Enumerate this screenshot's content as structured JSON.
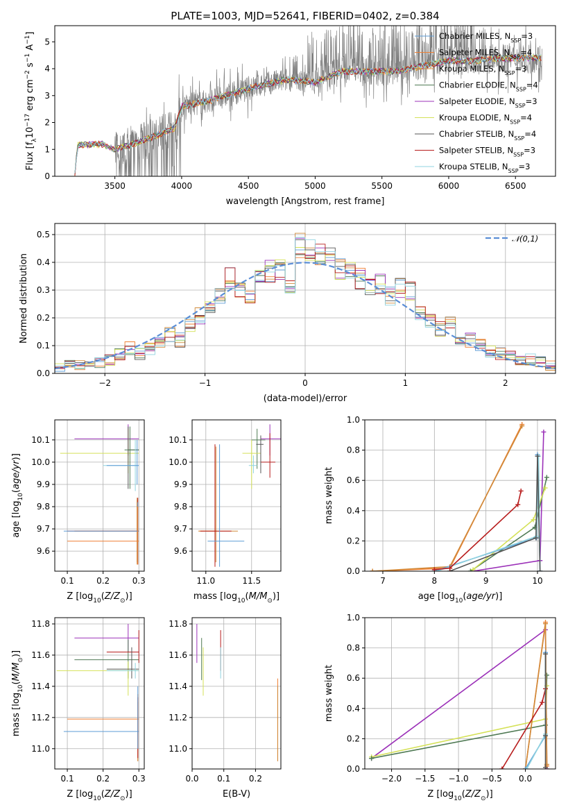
{
  "title": "PLATE=1003, MJD=52641, FIBERID=0402, z=0.384",
  "colors": [
    "#5b9bd5",
    "#ef7f32",
    "#d08a3a",
    "#4f7a54",
    "#9b30b8",
    "#d4e157",
    "#555555",
    "#b71c1c",
    "#8fd3e0"
  ],
  "series": [
    {
      "name": "Chabrier MILES, N",
      "sub": "SSP",
      "suf": "=3"
    },
    {
      "name": "Salpeter MILES, N",
      "sub": "SSP",
      "suf": "=4"
    },
    {
      "name": "Kroupa MILES, N",
      "sub": "SSP",
      "suf": "=3"
    },
    {
      "name": "Chabrier ELODIE, N",
      "sub": "SSP",
      "suf": "=4"
    },
    {
      "name": "Salpeter ELODIE, N",
      "sub": "SSP",
      "suf": "=3"
    },
    {
      "name": "Kroupa ELODIE, N",
      "sub": "SSP",
      "suf": "=4"
    },
    {
      "name": "Chabrier STELIB, N",
      "sub": "SSP",
      "suf": "=4"
    },
    {
      "name": "Salpeter STELIB, N",
      "sub": "SSP",
      "suf": "=3"
    },
    {
      "name": "Kroupa STELIB, N",
      "sub": "SSP",
      "suf": "=3"
    }
  ],
  "chart_data": [
    {
      "id": "spectrum",
      "type": "line",
      "xlabel": "wavelength [Angstrom, rest frame]",
      "ylabel": "Flux [f_λ 10^-17 erg cm^-2 s^-1 A^-1]",
      "xlim": [
        3050,
        6800
      ],
      "ylim": [
        0,
        5.6
      ],
      "xticks": [
        3500,
        4000,
        4500,
        5000,
        5500,
        6000,
        6500
      ],
      "yticks": [
        0,
        1,
        2,
        3,
        4,
        5
      ],
      "grid": false,
      "legend": "top-right",
      "continuum": [
        [
          3200,
          0
        ],
        [
          3220,
          1.15
        ],
        [
          3400,
          1.2
        ],
        [
          3500,
          1.0
        ],
        [
          3700,
          1.3
        ],
        [
          3850,
          1.6
        ],
        [
          3950,
          1.8
        ],
        [
          4000,
          2.6
        ],
        [
          4200,
          2.8
        ],
        [
          4400,
          3.1
        ],
        [
          4600,
          3.4
        ],
        [
          4800,
          3.6
        ],
        [
          5000,
          3.5
        ],
        [
          5200,
          3.9
        ],
        [
          5400,
          3.9
        ],
        [
          5600,
          3.9
        ],
        [
          5800,
          4.1
        ],
        [
          6000,
          4.3
        ],
        [
          6200,
          4.3
        ],
        [
          6400,
          4.4
        ],
        [
          6600,
          4.4
        ],
        [
          6700,
          4.4
        ]
      ]
    },
    {
      "id": "residuals",
      "type": "histogram",
      "xlabel": "(data-model)/error",
      "ylabel": "Normed distribution",
      "xlim": [
        -2.5,
        2.5
      ],
      "ylim": [
        0,
        0.54
      ],
      "xticks": [
        -2,
        -1,
        0,
        1,
        2
      ],
      "yticks": [
        0,
        0.1,
        0.2,
        0.3,
        0.4,
        0.5
      ],
      "grid": true,
      "legend": "top-right",
      "reference_label": "𝒩(0,1)",
      "bins": [
        -2.5,
        -2.4,
        -2.3,
        -2.2,
        -2.1,
        -2.0,
        -1.9,
        -1.8,
        -1.7,
        -1.6,
        -1.5,
        -1.4,
        -1.3,
        -1.2,
        -1.1,
        -1.0,
        -0.9,
        -0.8,
        -0.7,
        -0.6,
        -0.5,
        -0.4,
        -0.3,
        -0.2,
        -0.1,
        0.0,
        0.1,
        0.2,
        0.3,
        0.4,
        0.5,
        0.6,
        0.7,
        0.8,
        0.9,
        1.0,
        1.1,
        1.2,
        1.3,
        1.4,
        1.5,
        1.6,
        1.7,
        1.8,
        1.9,
        2.0,
        2.1,
        2.2,
        2.3,
        2.4
      ],
      "base_values": [
        0.02,
        0.03,
        0.03,
        0.03,
        0.04,
        0.05,
        0.07,
        0.09,
        0.07,
        0.09,
        0.12,
        0.14,
        0.12,
        0.17,
        0.21,
        0.23,
        0.27,
        0.34,
        0.31,
        0.29,
        0.36,
        0.37,
        0.38,
        0.33,
        0.46,
        0.44,
        0.42,
        0.42,
        0.38,
        0.37,
        0.34,
        0.31,
        0.32,
        0.28,
        0.31,
        0.3,
        0.22,
        0.19,
        0.16,
        0.18,
        0.12,
        0.12,
        0.1,
        0.08,
        0.07,
        0.06,
        0.05,
        0.05,
        0.04,
        0.03
      ]
    },
    {
      "id": "age_vs_Z",
      "type": "scatter",
      "xlabel": "Z [log10(Z/Z⊙)]",
      "ylabel": "age [log10(age/yr)]",
      "xlim": [
        0.065,
        0.315
      ],
      "ylim": [
        9.51,
        10.19
      ],
      "xticks": [
        0.1,
        0.2,
        0.3
      ],
      "yticks": [
        9.6,
        9.7,
        9.8,
        9.9,
        10.0,
        10.1
      ],
      "grid": true,
      "points": [
        {
          "s": 4,
          "x": 0.27,
          "y": 10.105,
          "xe": [
            0.12,
            0.3
          ],
          "ye": [
            10.03,
            10.17
          ]
        },
        {
          "s": 5,
          "x": 0.27,
          "y": 10.04,
          "xe": [
            0.08,
            0.3
          ],
          "ye": [
            9.95,
            10.15
          ]
        },
        {
          "s": 6,
          "x": 0.27,
          "y": 10.055,
          "xe": [
            0.27,
            0.3
          ],
          "ye": [
            9.88,
            10.16
          ]
        },
        {
          "s": 3,
          "x": 0.275,
          "y": 10.055,
          "xe": [
            0.26,
            0.3
          ],
          "ye": [
            9.88,
            10.16
          ]
        },
        {
          "s": 8,
          "x": 0.29,
          "y": 9.985,
          "xe": [
            0.2,
            0.3
          ],
          "ye": [
            9.87,
            10.1
          ]
        },
        {
          "s": 0,
          "x": 0.295,
          "y": 9.985,
          "xe": [
            0.21,
            0.3
          ],
          "ye": [
            9.9,
            10.1
          ]
        },
        {
          "s": 1,
          "x": 0.295,
          "y": 9.69,
          "xe": [
            0.12,
            0.3
          ],
          "ye": [
            9.55,
            9.83
          ]
        },
        {
          "s": 2,
          "x": 0.295,
          "y": 9.69,
          "xe": [
            0.12,
            0.3
          ],
          "ye": [
            9.54,
            9.84
          ]
        },
        {
          "s": 7,
          "x": 0.297,
          "y": 9.69,
          "xe": [
            0.1,
            0.3
          ],
          "ye": [
            9.54,
            9.84
          ]
        },
        {
          "s": 0,
          "x": 0.297,
          "y": 9.69,
          "xe": [
            0.09,
            0.3
          ],
          "ye": [
            9.55,
            9.82
          ]
        },
        {
          "s": 1,
          "x": 0.297,
          "y": 9.645,
          "xe": [
            0.1,
            0.3
          ],
          "ye": [
            9.54,
            9.8
          ]
        }
      ]
    },
    {
      "id": "age_vs_mass",
      "type": "scatter",
      "xlabel": "mass [log10(M/M⊙)]",
      "ylabel": "",
      "xlim": [
        10.85,
        11.82
      ],
      "ylim": [
        9.51,
        10.19
      ],
      "xticks": [
        11.0,
        11.5
      ],
      "yticks": [
        9.6,
        9.7,
        9.8,
        9.9,
        10.0,
        10.1
      ],
      "grid": true,
      "points": [
        {
          "s": 4,
          "x": 11.7,
          "y": 10.105,
          "xe": [
            11.6,
            11.82
          ],
          "ye": [
            10.03,
            10.17
          ]
        },
        {
          "s": 3,
          "x": 11.56,
          "y": 10.1,
          "xe": [
            11.5,
            11.65
          ],
          "ye": [
            9.97,
            10.15
          ]
        },
        {
          "s": 5,
          "x": 11.5,
          "y": 10.04,
          "xe": [
            11.4,
            11.6
          ],
          "ye": [
            9.88,
            10.1
          ]
        },
        {
          "s": 7,
          "x": 11.7,
          "y": 10.0,
          "xe": [
            11.6,
            11.76
          ],
          "ye": [
            9.93,
            10.13
          ]
        },
        {
          "s": 6,
          "x": 11.6,
          "y": 10.08,
          "xe": [
            11.55,
            11.63
          ],
          "ye": [
            9.95,
            10.12
          ]
        },
        {
          "s": 8,
          "x": 11.52,
          "y": 9.985,
          "xe": [
            11.47,
            11.56
          ],
          "ye": [
            9.95,
            10.03
          ]
        },
        {
          "s": 1,
          "x": 11.1,
          "y": 9.69,
          "xe": [
            10.92,
            11.12
          ],
          "ye": [
            9.53,
            10.08
          ]
        },
        {
          "s": 2,
          "x": 11.11,
          "y": 9.69,
          "xe": [
            10.92,
            11.35
          ],
          "ye": [
            9.55,
            10.07
          ]
        },
        {
          "s": 7,
          "x": 11.1,
          "y": 9.69,
          "xe": [
            10.94,
            11.28
          ],
          "ye": [
            9.53,
            10.08
          ]
        },
        {
          "s": 0,
          "x": 11.15,
          "y": 9.645,
          "xe": [
            11.02,
            11.42
          ],
          "ye": [
            9.53,
            10.08
          ]
        }
      ]
    },
    {
      "id": "weight_vs_age",
      "type": "line",
      "xlabel": "age [log10(age/yr)]",
      "ylabel": "mass weight",
      "xlim": [
        6.65,
        10.35
      ],
      "ylim": [
        0,
        1
      ],
      "xticks": [
        7,
        8,
        9,
        10
      ],
      "yticks": [
        0,
        0.2,
        0.4,
        0.6,
        0.8,
        1.0
      ],
      "grid": true,
      "lines": [
        {
          "s": 1,
          "x": [
            6.8,
            8.3,
            9.7
          ],
          "y": [
            0.0,
            0.02,
            0.97
          ]
        },
        {
          "s": 2,
          "x": [
            6.8,
            8.3,
            9.7
          ],
          "y": [
            0.0,
            0.03,
            0.96
          ]
        },
        {
          "s": 4,
          "x": [
            8.75,
            10.05,
            10.12
          ],
          "y": [
            0.0,
            0.07,
            0.92
          ]
        },
        {
          "s": 3,
          "x": [
            8.7,
            9.95,
            10.18
          ],
          "y": [
            0.0,
            0.29,
            0.62
          ]
        },
        {
          "s": 5,
          "x": [
            8.75,
            9.92,
            10.15
          ],
          "y": [
            0.01,
            0.34,
            0.55
          ]
        },
        {
          "s": 0,
          "x": [
            8.0,
            9.98,
            10.0,
            10.05
          ],
          "y": [
            0.0,
            0.22,
            0.77,
            0.0
          ]
        },
        {
          "s": 8,
          "x": [
            8.05,
            9.98,
            10.02,
            10.05
          ],
          "y": [
            0.0,
            0.23,
            0.76,
            0.0
          ]
        },
        {
          "s": 6,
          "x": [
            8.3,
            9.97,
            10.0,
            10.05
          ],
          "y": [
            0.0,
            0.22,
            0.76,
            0.0
          ]
        },
        {
          "s": 7,
          "x": [
            8.0,
            8.3,
            9.62,
            9.68
          ],
          "y": [
            0.01,
            0.02,
            0.44,
            0.53
          ]
        }
      ]
    },
    {
      "id": "mass_vs_Z",
      "type": "scatter",
      "xlabel": "Z [log10(Z/Z⊙)]",
      "ylabel": "mass [log10(M/M⊙)]",
      "xlim": [
        0.065,
        0.315
      ],
      "ylim": [
        10.87,
        11.84
      ],
      "xticks": [
        0.1,
        0.2,
        0.3
      ],
      "yticks": [
        11.0,
        11.2,
        11.4,
        11.6,
        11.8
      ],
      "grid": true,
      "points": [
        {
          "s": 4,
          "x": 0.27,
          "y": 11.71,
          "xe": [
            0.12,
            0.3
          ],
          "ye": [
            11.62,
            11.8
          ]
        },
        {
          "s": 3,
          "x": 0.27,
          "y": 11.57,
          "xe": [
            0.12,
            0.3
          ],
          "ye": [
            11.45,
            11.7
          ]
        },
        {
          "s": 7,
          "x": 0.3,
          "y": 11.62,
          "xe": [
            0.21,
            0.3
          ],
          "ye": [
            11.55,
            11.76
          ]
        },
        {
          "s": 5,
          "x": 0.27,
          "y": 11.5,
          "xe": [
            0.07,
            0.3
          ],
          "ye": [
            11.34,
            11.56
          ]
        },
        {
          "s": 6,
          "x": 0.28,
          "y": 11.51,
          "xe": [
            0.21,
            0.3
          ],
          "ye": [
            11.45,
            11.65
          ]
        },
        {
          "s": 8,
          "x": 0.29,
          "y": 11.5,
          "xe": [
            0.21,
            0.3
          ],
          "ye": [
            11.45,
            11.55
          ]
        },
        {
          "s": 1,
          "x": 0.297,
          "y": 11.19,
          "xe": [
            0.1,
            0.3
          ],
          "ye": [
            10.92,
            11.35
          ]
        },
        {
          "s": 2,
          "x": 0.297,
          "y": 11.11,
          "xe": [
            0.12,
            0.3
          ],
          "ye": [
            10.92,
            11.3
          ]
        },
        {
          "s": 7,
          "x": 0.297,
          "y": 11.11,
          "xe": [
            0.12,
            0.3
          ],
          "ye": [
            10.94,
            11.33
          ]
        },
        {
          "s": 0,
          "x": 0.297,
          "y": 11.11,
          "xe": [
            0.09,
            0.3
          ],
          "ye": [
            11.0,
            11.4
          ]
        }
      ]
    },
    {
      "id": "mass_vs_EBV",
      "type": "scatter",
      "xlabel": "E(B-V)",
      "ylabel": "",
      "xlim": [
        0.0,
        0.28
      ],
      "ylim": [
        10.87,
        11.84
      ],
      "xticks": [
        0.0,
        0.1,
        0.2
      ],
      "yticks": [
        11.0,
        11.2,
        11.4,
        11.6,
        11.8
      ],
      "grid": true,
      "points": [
        {
          "s": 4,
          "x": 0.015,
          "y": 11.71,
          "xe": [
            0.015,
            0.015
          ],
          "ye": [
            11.55,
            11.8
          ]
        },
        {
          "s": 3,
          "x": 0.03,
          "y": 11.57,
          "xe": [
            0.03,
            0.03
          ],
          "ye": [
            11.44,
            11.71
          ]
        },
        {
          "s": 5,
          "x": 0.035,
          "y": 11.5,
          "xe": [
            0.035,
            0.035
          ],
          "ye": [
            11.34,
            11.65
          ]
        },
        {
          "s": 7,
          "x": 0.09,
          "y": 11.62,
          "xe": [
            0.09,
            0.09
          ],
          "ye": [
            11.5,
            11.76
          ]
        },
        {
          "s": 8,
          "x": 0.09,
          "y": 11.5,
          "xe": [
            0.09,
            0.09
          ],
          "ye": [
            11.45,
            11.65
          ]
        },
        {
          "s": 1,
          "x": 0.27,
          "y": 11.19,
          "xe": [
            0.27,
            0.27
          ],
          "ye": [
            10.92,
            11.45
          ]
        },
        {
          "s": 2,
          "x": 0.27,
          "y": 11.11,
          "xe": [
            0.27,
            0.27
          ],
          "ye": [
            10.92,
            11.4
          ]
        }
      ]
    },
    {
      "id": "weight_vs_Z",
      "type": "line",
      "xlabel": "Z [log10(Z/Z⊙)]",
      "ylabel": "mass weight",
      "xlim": [
        -2.4,
        0.45
      ],
      "ylim": [
        0,
        1
      ],
      "xticks": [
        -2.0,
        -1.5,
        -1.0,
        -0.5,
        0.0
      ],
      "yticks": [
        0,
        0.2,
        0.4,
        0.6,
        0.8,
        1.0
      ],
      "grid": true,
      "lines": [
        {
          "s": 4,
          "x": [
            -2.3,
            0.3,
            0.32
          ],
          "y": [
            0.07,
            0.92,
            0.0
          ]
        },
        {
          "s": 5,
          "x": [
            -2.3,
            0.3,
            0.32
          ],
          "y": [
            0.08,
            0.33,
            0.55
          ]
        },
        {
          "s": 3,
          "x": [
            -2.3,
            0.3,
            0.32
          ],
          "y": [
            0.07,
            0.29,
            0.62
          ]
        },
        {
          "s": 1,
          "x": [
            0.0,
            0.3,
            0.32
          ],
          "y": [
            0.0,
            0.97,
            0.02
          ]
        },
        {
          "s": 2,
          "x": [
            0.0,
            0.3,
            0.32
          ],
          "y": [
            0.0,
            0.96,
            0.03
          ]
        },
        {
          "s": 7,
          "x": [
            -0.35,
            0.25,
            0.3
          ],
          "y": [
            0.0,
            0.44,
            0.53
          ]
        },
        {
          "s": 0,
          "x": [
            0.0,
            0.3,
            0.3
          ],
          "y": [
            0.0,
            0.22,
            0.77
          ]
        },
        {
          "s": 8,
          "x": [
            0.02,
            0.3,
            0.3
          ],
          "y": [
            0.0,
            0.23,
            0.76
          ]
        },
        {
          "s": 6,
          "x": [
            0.3,
            0.3,
            0.3
          ],
          "y": [
            0.01,
            0.22,
            0.76
          ]
        }
      ]
    }
  ]
}
